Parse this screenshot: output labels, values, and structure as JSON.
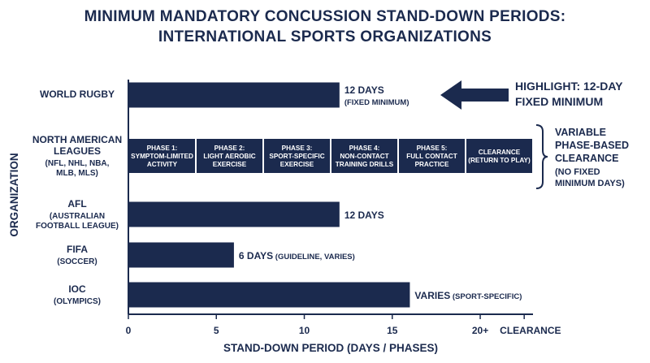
{
  "chart_data": {
    "type": "bar",
    "orientation": "horizontal",
    "title_lines": [
      "MINIMUM MANDATORY CONCUSSION STAND-DOWN PERIODS:",
      "INTERNATIONAL SPORTS ORGANIZATIONS"
    ],
    "xlabel": "STAND-DOWN PERIOD (DAYS / PHASES)",
    "ylabel": "ORGANIZATION",
    "xlim": [
      0,
      23
    ],
    "x_ticks": [
      {
        "value": 0,
        "label": "0"
      },
      {
        "value": 5,
        "label": "5"
      },
      {
        "value": 10,
        "label": "10"
      },
      {
        "value": 15,
        "label": "15"
      },
      {
        "value": 20,
        "label": "20+"
      },
      {
        "value": 22.5,
        "label": "CLEARANCE"
      }
    ],
    "categories": [
      {
        "name_lines": [
          "WORLD RUGBY"
        ],
        "sub_lines": []
      },
      {
        "name_lines": [
          "NORTH AMERICAN",
          "LEAGUES"
        ],
        "sub_lines": [
          "(NFL, NHL, NBA,",
          "MLB, MLS)"
        ]
      },
      {
        "name_lines": [
          "AFL"
        ],
        "sub_lines": [
          "(AUSTRALIAN",
          "FOOTBALL LEAGUE)"
        ]
      },
      {
        "name_lines": [
          "FIFA"
        ],
        "sub_lines": [
          "(SOCCER)"
        ]
      },
      {
        "name_lines": [
          "IOC"
        ],
        "sub_lines": [
          "(OLYMPICS)"
        ]
      }
    ],
    "values": [
      12,
      null,
      12,
      6,
      16
    ],
    "value_labels": [
      {
        "main": "12 DAYS",
        "sub": "(FIXED MINIMUM)",
        "sub_position": "below"
      },
      null,
      {
        "main": "12 DAYS",
        "sub": "",
        "sub_position": "none"
      },
      {
        "main": "6 DAYS",
        "sub": "(GUIDELINE, VARIES)",
        "sub_position": "inline"
      },
      {
        "main": "VARIES",
        "sub": "(SPORT-SPECIFIC)",
        "sub_position": "inline"
      }
    ],
    "phases": {
      "category_index": 1,
      "items": [
        {
          "lines": [
            "PHASE 1:",
            "SYMPTOM-LIMITED",
            "ACTIVITY"
          ]
        },
        {
          "lines": [
            "PHASE 2:",
            "LIGHT AEROBIC",
            "EXERCISE"
          ]
        },
        {
          "lines": [
            "PHASE 3:",
            "SPORT-SPECIFIC",
            "EXERCISE"
          ]
        },
        {
          "lines": [
            "PHASE 4:",
            "NON-CONTACT",
            "TRAINING DRILLS"
          ]
        },
        {
          "lines": [
            "PHASE 5:",
            "FULL CONTACT",
            "PRACTICE"
          ]
        },
        {
          "lines": [
            "CLEARANCE",
            "(RETURN TO PLAY)"
          ]
        }
      ],
      "side_note": {
        "main_lines": [
          "VARIABLE",
          "PHASE-BASED",
          "CLEARANCE"
        ],
        "sub_lines": [
          "(NO FIXED",
          "MINIMUM DAYS)"
        ]
      }
    },
    "highlight": {
      "category_index": 0,
      "lines": [
        "HIGHLIGHT: 12-DAY",
        "FIXED MINIMUM"
      ]
    },
    "color": "#1b2a4e",
    "grid": false,
    "legend": "none"
  }
}
